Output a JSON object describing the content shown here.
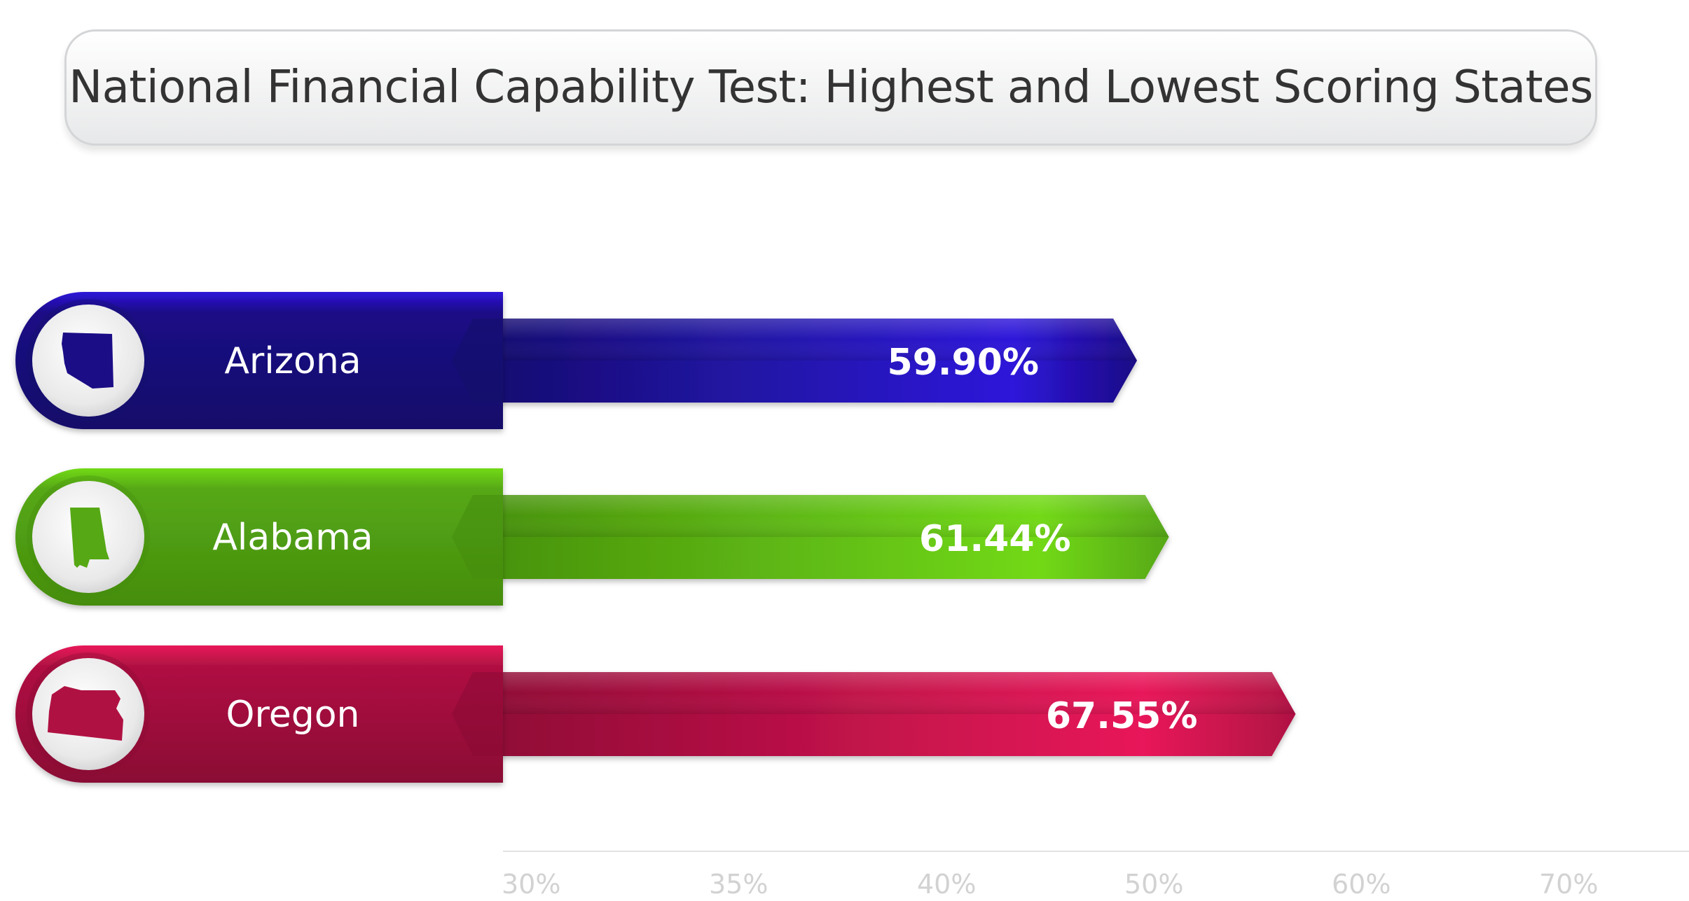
{
  "chart_data": {
    "type": "bar",
    "orientation": "horizontal",
    "title": "National Financial Capability Test: Highest and Lowest Scoring States",
    "categories": [
      "Arizona",
      "Alabama",
      "Oregon"
    ],
    "values": [
      59.9,
      61.44,
      67.55
    ],
    "value_labels": [
      "59.90%",
      "61.44%",
      "67.55%"
    ],
    "x_ticks": [
      "30%",
      "35%",
      "40%",
      "50%",
      "60%",
      "70%"
    ],
    "xlabel": "",
    "ylabel": "",
    "grid": false,
    "legend": "none",
    "colors": {
      "Arizona": {
        "dark": "#141069",
        "mid": "#1b0d86",
        "bright": "#2e14da"
      },
      "Alabama": {
        "dark": "#458d0e",
        "mid": "#56a815",
        "bright": "#72d916"
      },
      "Oregon": {
        "dark": "#8a0b34",
        "mid": "#b01143",
        "bright": "#e8175a"
      }
    },
    "icons": [
      "arizona-state-icon",
      "alabama-state-icon",
      "oregon-state-icon"
    ]
  }
}
